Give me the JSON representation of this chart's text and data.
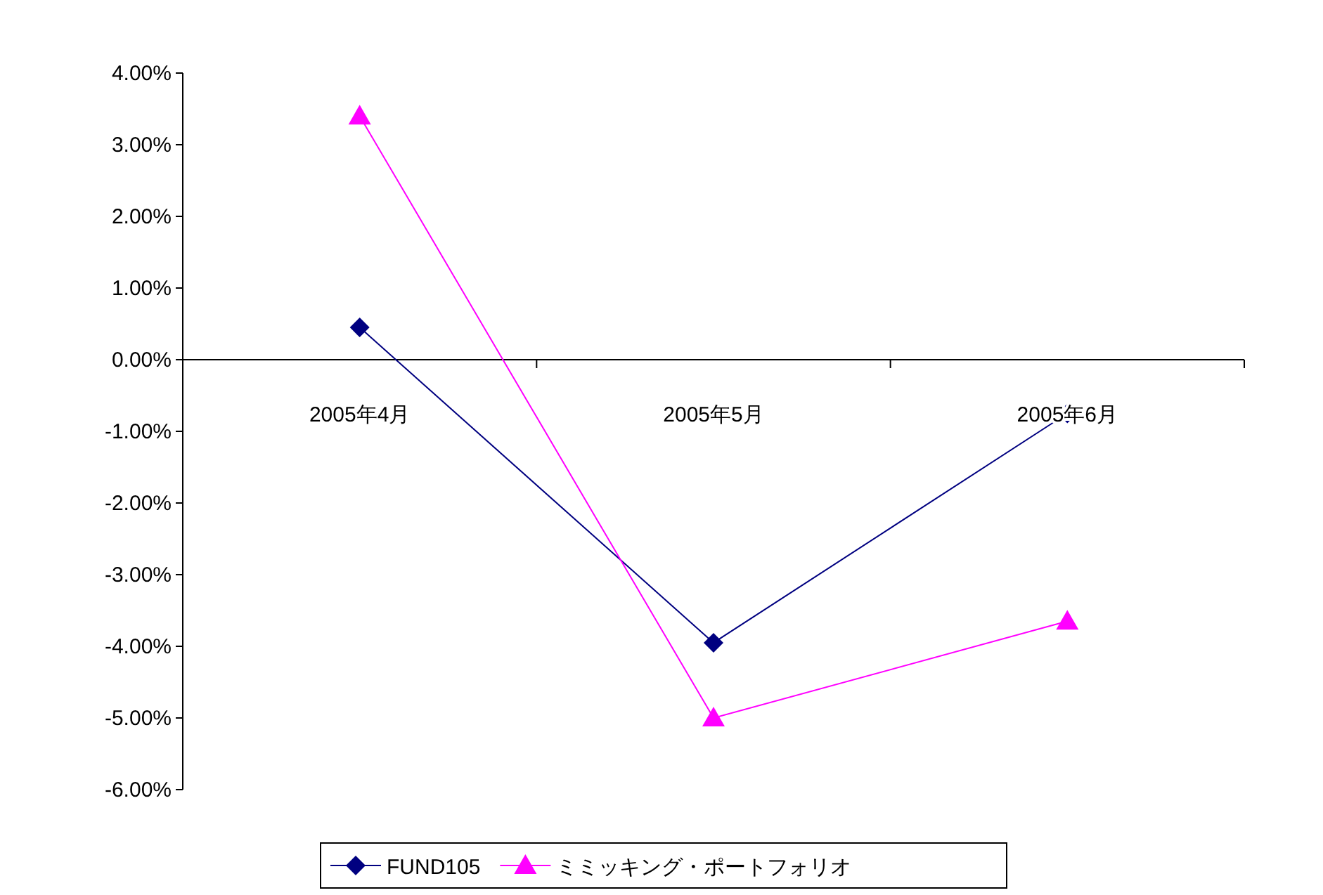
{
  "chart_data": {
    "type": "line",
    "categories": [
      "2005年4月",
      "2005年5月",
      "2005年6月"
    ],
    "series": [
      {
        "name": "FUND105",
        "color": "#000080",
        "values": [
          0.45,
          -3.95,
          -0.75
        ],
        "marker": "diamond"
      },
      {
        "name": "ミミッキング・ポートフォリオ",
        "color": "#ff00ff",
        "values": [
          3.4,
          -5.0,
          -3.65
        ],
        "marker": "triangle"
      }
    ],
    "ylim": [
      -6,
      4
    ],
    "yticks": [
      {
        "value": -6,
        "label": "-6.00%"
      },
      {
        "value": -5,
        "label": "-5.00%"
      },
      {
        "value": -4,
        "label": "-4.00%"
      },
      {
        "value": -3,
        "label": "-3.00%"
      },
      {
        "value": -2,
        "label": "-2.00%"
      },
      {
        "value": -1,
        "label": "-1.00%"
      },
      {
        "value": 0,
        "label": "0.00%"
      },
      {
        "value": 1,
        "label": "1.00%"
      },
      {
        "value": 2,
        "label": "2.00%"
      },
      {
        "value": 3,
        "label": "3.00%"
      },
      {
        "value": 4,
        "label": "4.00%"
      }
    ],
    "legend": "bottom",
    "grid": false,
    "line_style": "solid"
  }
}
